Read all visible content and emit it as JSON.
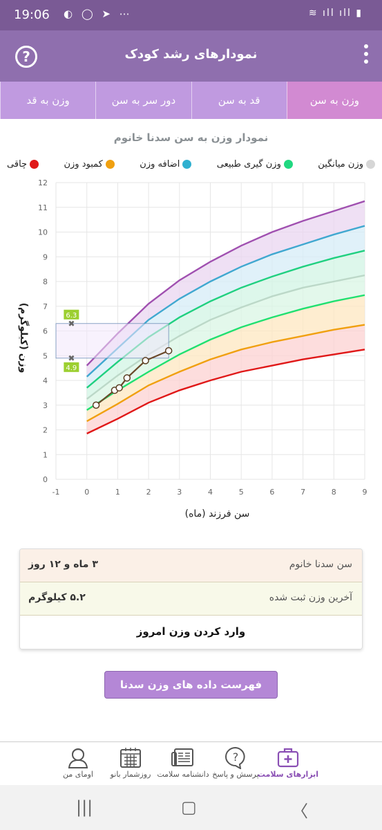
{
  "status": {
    "time": "19:06"
  },
  "header": {
    "title": "نمودارهای رشد کودک"
  },
  "tabs": [
    {
      "label": "وزن به قد",
      "active": false
    },
    {
      "label": "دور سر به سن",
      "active": false
    },
    {
      "label": "قد به سن",
      "active": false
    },
    {
      "label": "وزن به سن",
      "active": true
    }
  ],
  "chart_title": "نمودار وزن به سن سدنا خانوم",
  "legend": [
    {
      "label": "چاقی",
      "color": "#e01818"
    },
    {
      "label": "کمبود وزن",
      "color": "#f0a010"
    },
    {
      "label": "اضافه وزن",
      "color": "#30b0d0"
    },
    {
      "label": "وزن گیری طبیعی",
      "color": "#20d880"
    },
    {
      "label": "وزن میانگین",
      "color": "#d6d6d6"
    }
  ],
  "chart_data": {
    "type": "line",
    "xlabel": "سن فرزند (ماه)",
    "ylabel": "وزن (کیلوگرم)",
    "xlim": [
      -1,
      9
    ],
    "ylim": [
      0,
      12
    ],
    "x_ticks": [
      "-1",
      "0",
      "1",
      "2",
      "3",
      "4",
      "5",
      "6",
      "7",
      "8",
      "9"
    ],
    "y_ticks": [
      "0",
      "1",
      "2",
      "3",
      "4",
      "5",
      "6",
      "7",
      "8",
      "9",
      "10",
      "11",
      "12"
    ],
    "x": [
      0,
      1,
      2,
      3,
      4,
      5,
      6,
      7,
      8,
      9
    ],
    "series": [
      {
        "color": "#a050b0",
        "values": [
          4.6,
          5.9,
          7.1,
          8.05,
          8.8,
          9.45,
          10.0,
          10.45,
          10.85,
          11.25
        ]
      },
      {
        "color": "#40a8d0",
        "values": [
          4.15,
          5.3,
          6.45,
          7.3,
          8.0,
          8.6,
          9.1,
          9.5,
          9.9,
          10.25
        ]
      },
      {
        "color": "#20d080",
        "values": [
          3.7,
          4.75,
          5.75,
          6.55,
          7.2,
          7.75,
          8.2,
          8.6,
          8.95,
          9.25
        ]
      },
      {
        "color": "#bcd8c8",
        "values": [
          3.25,
          4.2,
          5.05,
          5.8,
          6.45,
          6.95,
          7.4,
          7.75,
          8.0,
          8.25
        ]
      },
      {
        "color": "#20e070",
        "values": [
          2.8,
          3.6,
          4.35,
          5.05,
          5.65,
          6.15,
          6.55,
          6.9,
          7.2,
          7.45
        ]
      },
      {
        "color": "#f0a010",
        "values": [
          2.35,
          3.05,
          3.8,
          4.35,
          4.85,
          5.25,
          5.55,
          5.8,
          6.05,
          6.25
        ]
      },
      {
        "color": "#e01818",
        "values": [
          1.85,
          2.45,
          3.1,
          3.6,
          4.0,
          4.35,
          4.6,
          4.85,
          5.05,
          5.25
        ]
      }
    ],
    "child_weights": {
      "x": [
        0.3,
        0.9,
        1.05,
        1.3,
        1.9,
        2.65
      ],
      "y": [
        3.0,
        3.6,
        3.7,
        4.1,
        4.8,
        5.2
      ]
    },
    "range_markers": {
      "upper": "6.3",
      "lower": "4.9",
      "upper_value": 6.3,
      "lower_value": 4.9,
      "age": 2.65
    }
  },
  "info": {
    "name_label": "سن سدنا خانوم",
    "age_value": "۳ ماه و ۱۲ روز",
    "weight_label": "آخرین وزن ثبت شده",
    "weight_value": "۵.۲ کیلوگرم",
    "add_weight": "وارد کردن وزن امروز"
  },
  "list_button": "فهرست داده های وزن سدنا خانوم",
  "bottom_nav": [
    {
      "label": "ابزارهای سلامت",
      "icon": "first-aid-kit-icon",
      "active": true
    },
    {
      "label": "پرسش و پاسخ",
      "icon": "question-bubble-icon",
      "active": false
    },
    {
      "label": "دانشنامه سلامت",
      "icon": "encyclopedia-icon",
      "active": false
    },
    {
      "label": "روزشمار بانو",
      "icon": "calendar-icon",
      "active": false
    },
    {
      "label": "اومای من",
      "icon": "profile-icon",
      "active": false
    }
  ]
}
